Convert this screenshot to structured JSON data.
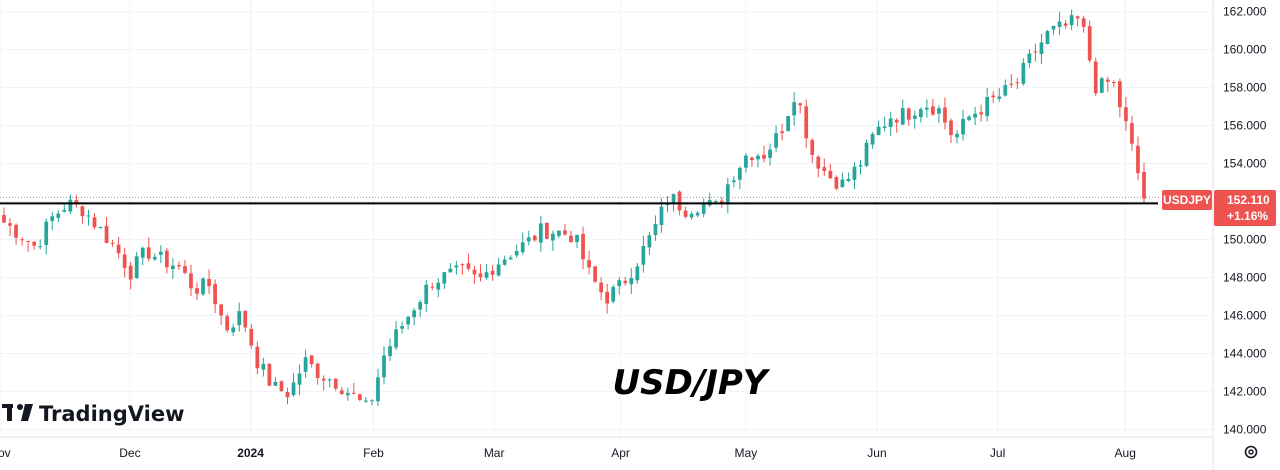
{
  "chart_data": {
    "type": "candlestick",
    "symbol": "USD/JPY",
    "ticker_label": "USDJPY",
    "last_price": "152.110",
    "change_pct": "+1.16%",
    "support_level": 151.9,
    "ylim": [
      139.6,
      162.4
    ],
    "y_ticks": [
      "140.000",
      "142.000",
      "144.000",
      "146.000",
      "148.000",
      "150.000",
      "152.000",
      "154.000",
      "156.000",
      "158.000",
      "160.000",
      "162.000"
    ],
    "x_ticks": [
      {
        "label": "Nov",
        "bold": false,
        "t": 0
      },
      {
        "label": "Dec",
        "bold": false,
        "t": 0.112
      },
      {
        "label": "2024",
        "bold": true,
        "t": 0.216
      },
      {
        "label": "Feb",
        "bold": false,
        "t": 0.322
      },
      {
        "label": "Mar",
        "bold": false,
        "t": 0.426
      },
      {
        "label": "Apr",
        "bold": false,
        "t": 0.535
      },
      {
        "label": "May",
        "bold": false,
        "t": 0.643
      },
      {
        "label": "Jun",
        "bold": false,
        "t": 0.756
      },
      {
        "label": "Jul",
        "bold": false,
        "t": 0.86
      },
      {
        "label": "Aug",
        "bold": false,
        "t": 0.97
      }
    ],
    "keypoints": [
      150.9,
      150.3,
      149.6,
      151.1,
      151.9,
      151.6,
      150.6,
      149.6,
      148.3,
      149.4,
      148.9,
      148.6,
      147.4,
      147.6,
      145.3,
      146.1,
      143.6,
      142.2,
      141.9,
      143.6,
      142.9,
      142.5,
      141.8,
      141.0,
      143.9,
      145.3,
      146.6,
      147.8,
      148.1,
      148.3,
      147.8,
      148.7,
      149.3,
      149.8,
      150.5,
      150.4,
      150.2,
      148.1,
      146.9,
      147.6,
      148.9,
      150.4,
      152.3,
      151.6,
      151.9,
      151.7,
      153.4,
      154.6,
      154.5,
      155.6,
      157.9,
      154.6,
      153.4,
      152.9,
      153.9,
      155.6,
      156.5,
      156.6,
      157.2,
      156.9,
      155.3,
      156.5,
      157.1,
      157.6,
      158.3,
      159.8,
      160.9,
      161.2,
      161.6,
      157.9,
      158.4,
      155.6,
      152.2
    ],
    "colors": {
      "up": "#26a69a",
      "down": "#ef5350",
      "price_tag": "#ef5350",
      "axis_text": "#131722"
    }
  },
  "branding": {
    "logo_mark": "TV",
    "logo_text": "TradingView"
  },
  "settings_icon": "gear-icon"
}
